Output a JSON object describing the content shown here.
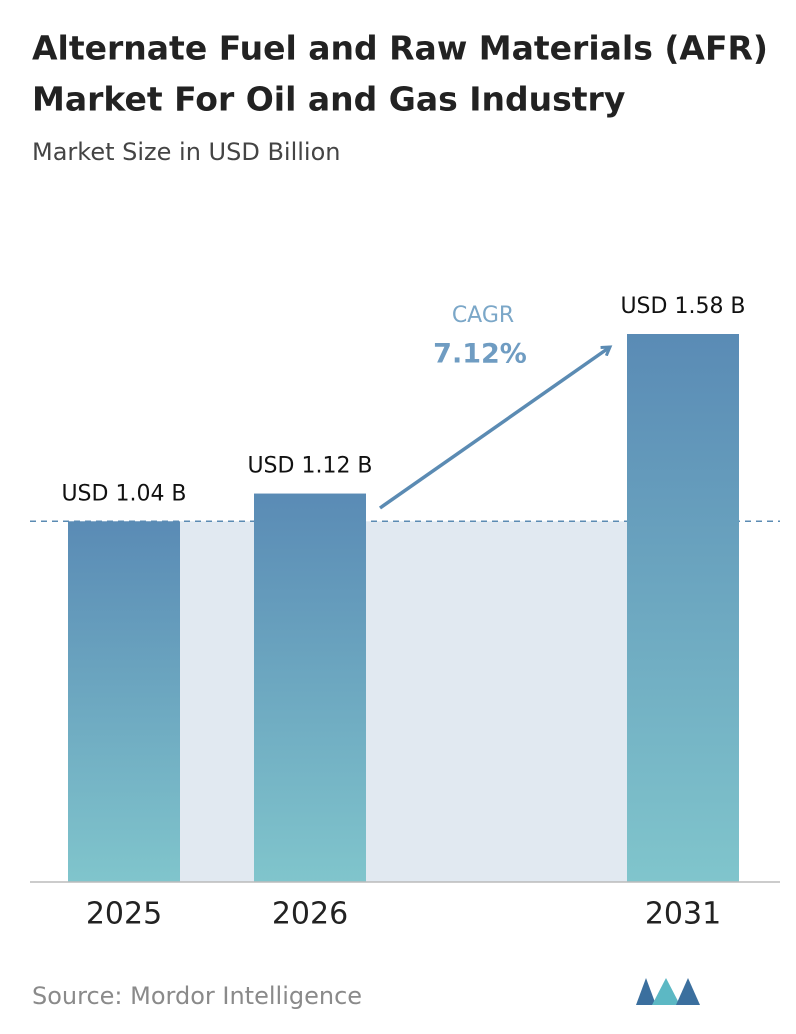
{
  "chart_data": {
    "type": "bar",
    "title": [
      "Alternate Fuel and Raw Materials (AFR)",
      "Market For Oil and Gas Industry"
    ],
    "subtitle": "Market Size in USD Billion",
    "categories": [
      "2025",
      "2026",
      "2031"
    ],
    "values": [
      1.04,
      1.12,
      1.58
    ],
    "value_labels": [
      "USD 1.04 B",
      "USD 1.12 B",
      "USD 1.58 B"
    ],
    "annotations": [
      "CAGR",
      "7.12%"
    ],
    "source": "Source: Mordor Intelligence"
  }
}
